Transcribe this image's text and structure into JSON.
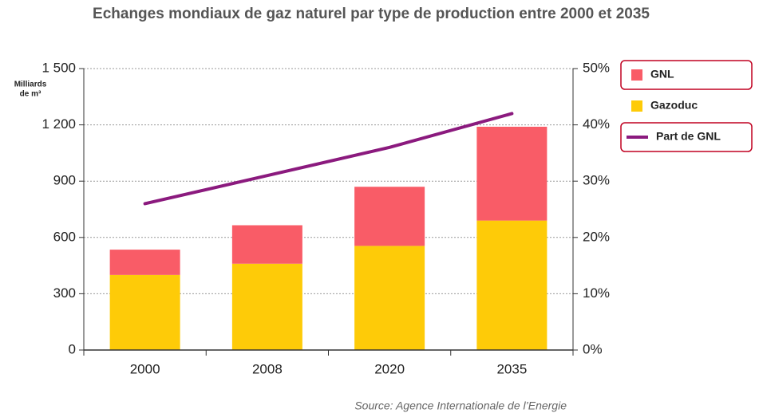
{
  "chart_data": {
    "type": "bar",
    "title": "Echanges mondiaux de gaz naturel par type de production entre 2000 et 2035",
    "y_label": [
      "Milliards",
      "de m³"
    ],
    "source": "Source: Agence Internationale de l’Energie",
    "categories": [
      "2000",
      "2008",
      "2020",
      "2035"
    ],
    "stacked": true,
    "series": [
      {
        "name": "Gazoduc",
        "color": "#fecb08",
        "values": [
          400,
          460,
          555,
          690
        ]
      },
      {
        "name": "GNL",
        "color": "#f95c67",
        "values": [
          135,
          205,
          315,
          500
        ]
      },
      {
        "name": "Part de GNL",
        "type": "line",
        "axis": "y2",
        "color": "#8b1a7e",
        "values": [
          26,
          31,
          36,
          42
        ]
      }
    ],
    "legend_order": [
      1,
      0,
      2
    ],
    "ylim": [
      0,
      1500
    ],
    "yticks": [
      0,
      300,
      600,
      900,
      {
        "value": 1200,
        "label": "1 200"
      },
      {
        "value": 1500,
        "label": "1 500"
      }
    ],
    "y2lim": [
      0,
      50
    ],
    "y2ticks": [
      {
        "value": 0,
        "label": "0%"
      },
      {
        "value": 10,
        "label": "10%"
      },
      {
        "value": 20,
        "label": "20%"
      },
      {
        "value": 30,
        "label": "30%"
      },
      {
        "value": 40,
        "label": "40%"
      },
      {
        "value": 50,
        "label": "50%"
      }
    ],
    "grid": true
  }
}
